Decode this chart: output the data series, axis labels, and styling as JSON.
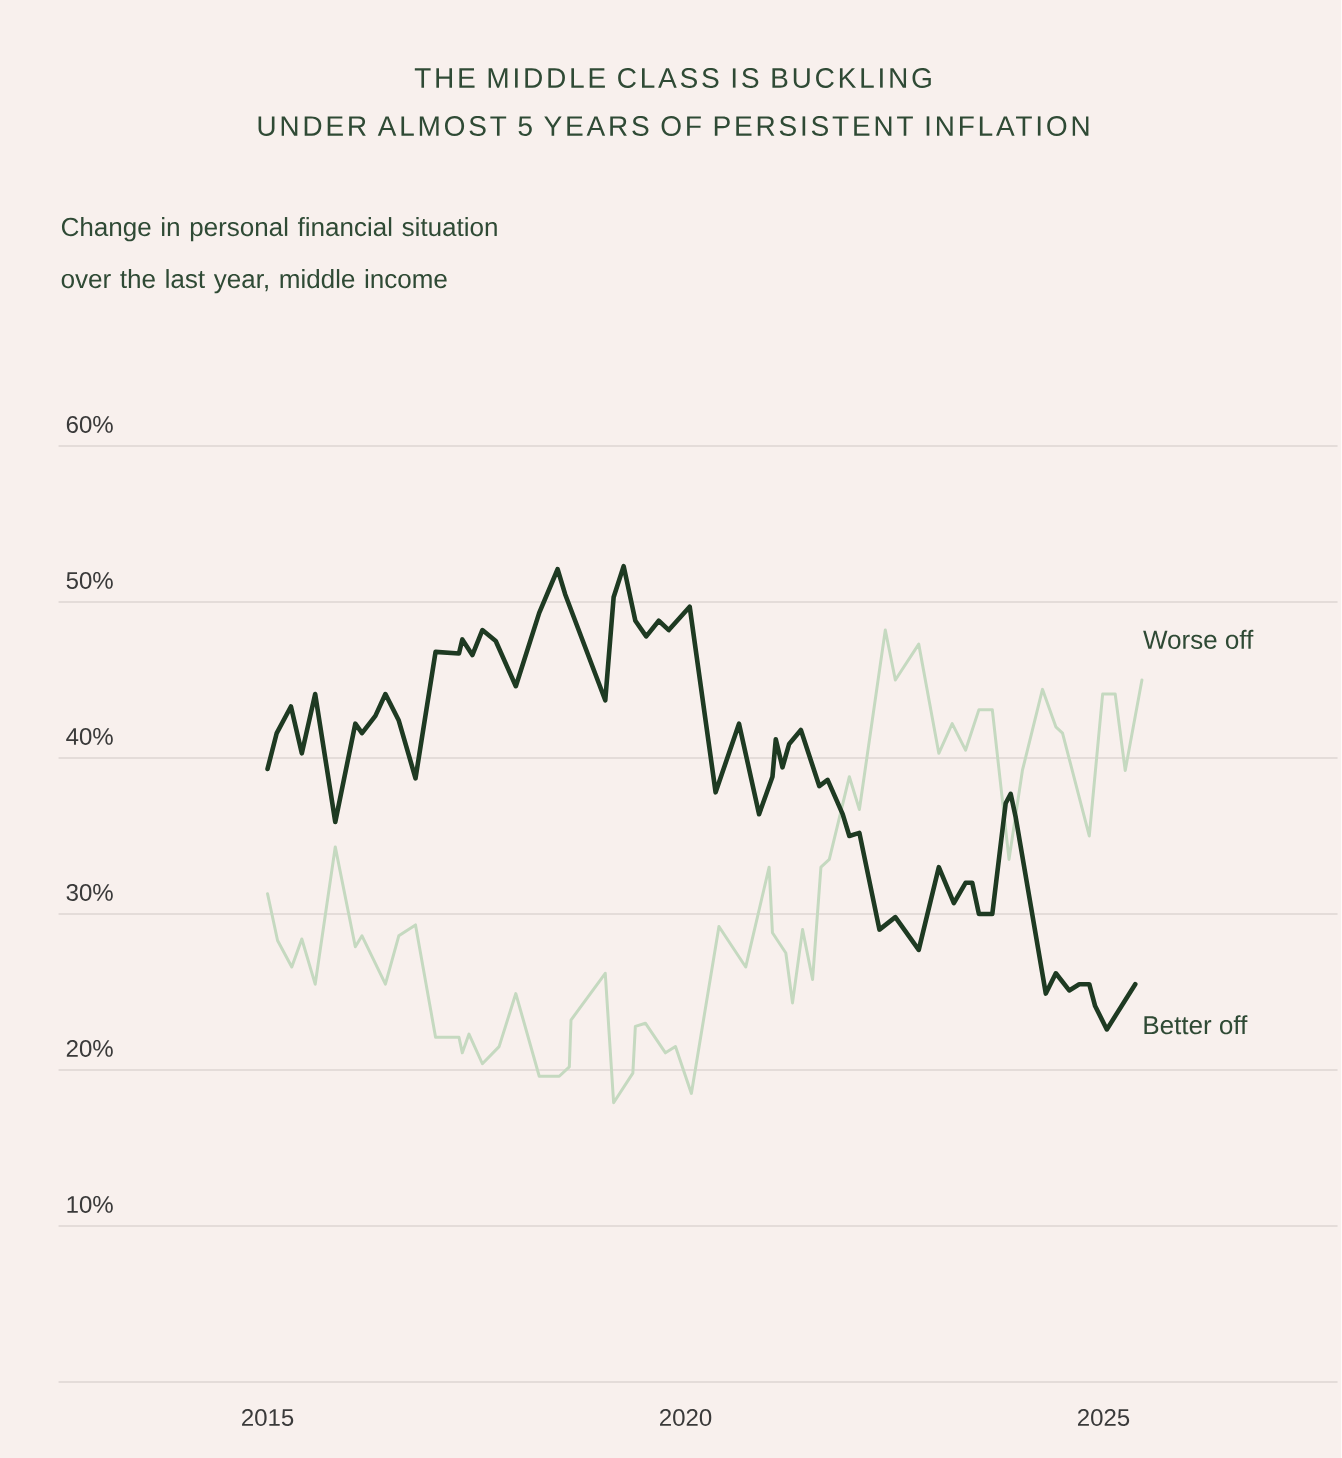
{
  "chart_data": {
    "type": "line",
    "title": "THE MIDDLE CLASS IS BUCKLING",
    "subtitle": "UNDER ALMOST 5 YEARS OF PERSISTENT INFLATION",
    "ylabel": "Change in personal financial situation over the last year, middle income",
    "xlim": [
      2012.5,
      2027.8
    ],
    "xticks": [
      2015,
      2020,
      2025
    ],
    "ylim": [
      0,
      60
    ],
    "yticks": [
      {
        "value": 0,
        "label": null
      },
      {
        "value": 10,
        "label": "10%"
      },
      {
        "value": 20,
        "label": "20%"
      },
      {
        "value": 30,
        "label": "30%"
      },
      {
        "value": 40,
        "label": "40%"
      },
      {
        "value": 50,
        "label": "50%"
      },
      {
        "value": 60,
        "label": "60%"
      }
    ],
    "grid": "y",
    "marker": "none",
    "line_style": "solid",
    "series": [
      {
        "name": "Worse off",
        "color": "#c5d9c0",
        "x": [
          2015.0,
          2015.12,
          2015.29,
          2015.41,
          2015.57,
          2015.81,
          2016.05,
          2016.13,
          2016.41,
          2016.57,
          2016.77,
          2017.01,
          2017.29,
          2017.33,
          2017.41,
          2017.57,
          2017.77,
          2017.97,
          2018.25,
          2018.49,
          2018.61,
          2018.63,
          2019.04,
          2019.14,
          2019.37,
          2019.4,
          2019.52,
          2019.76,
          2019.88,
          2020.07,
          2020.4,
          2020.72,
          2021.0,
          2021.04,
          2021.2,
          2021.28,
          2021.4,
          2021.52,
          2021.62,
          2021.72,
          2021.96,
          2022.08,
          2022.39,
          2022.51,
          2022.79,
          2023.03,
          2023.19,
          2023.35,
          2023.51,
          2023.67,
          2023.87,
          2024.03,
          2024.27,
          2024.43,
          2024.51,
          2024.83,
          2024.99,
          2025.14,
          2025.26,
          2025.46
        ],
        "values": [
          31.3,
          28.3,
          26.6,
          28.4,
          25.5,
          34.3,
          27.9,
          28.6,
          25.5,
          28.6,
          29.3,
          22.1,
          22.1,
          21.1,
          22.3,
          20.4,
          21.5,
          24.9,
          19.6,
          19.6,
          20.2,
          23.2,
          26.2,
          17.9,
          19.8,
          22.8,
          23.0,
          21.1,
          21.5,
          18.5,
          29.2,
          26.6,
          33.0,
          28.8,
          27.5,
          24.3,
          29.0,
          25.8,
          33.0,
          33.5,
          38.8,
          36.7,
          48.2,
          45.0,
          47.3,
          40.3,
          42.2,
          40.5,
          43.1,
          43.1,
          33.5,
          39.2,
          44.4,
          42.0,
          41.6,
          35.0,
          44.1,
          44.1,
          39.2,
          45.0
        ]
      },
      {
        "name": "Better off",
        "color": "#1e3a22",
        "x": [
          2015.0,
          2015.11,
          2015.28,
          2015.41,
          2015.57,
          2015.81,
          2016.05,
          2016.13,
          2016.29,
          2016.41,
          2016.57,
          2016.77,
          2017.01,
          2017.29,
          2017.33,
          2017.45,
          2017.57,
          2017.73,
          2017.97,
          2018.25,
          2018.47,
          2018.56,
          2019.04,
          2019.14,
          2019.26,
          2019.4,
          2019.53,
          2019.68,
          2019.8,
          2020.05,
          2020.36,
          2020.64,
          2020.88,
          2021.04,
          2021.08,
          2021.16,
          2021.24,
          2021.38,
          2021.6,
          2021.7,
          2021.88,
          2021.96,
          2022.08,
          2022.32,
          2022.51,
          2022.79,
          2023.03,
          2023.21,
          2023.35,
          2023.43,
          2023.51,
          2023.67,
          2023.83,
          2023.89,
          2023.95,
          2024.31,
          2024.43,
          2024.59,
          2024.71,
          2024.83,
          2024.9,
          2025.04,
          2025.38
        ],
        "values": [
          39.3,
          41.6,
          43.3,
          40.3,
          44.1,
          35.9,
          42.2,
          41.6,
          42.7,
          44.1,
          42.4,
          38.7,
          46.8,
          46.7,
          47.6,
          46.6,
          48.2,
          47.5,
          44.6,
          49.3,
          52.1,
          50.5,
          43.7,
          50.3,
          52.3,
          48.8,
          47.8,
          48.8,
          48.2,
          49.7,
          37.8,
          42.2,
          36.4,
          38.8,
          41.2,
          39.4,
          40.9,
          41.8,
          38.2,
          38.6,
          36.4,
          35.0,
          35.2,
          29.0,
          29.8,
          27.7,
          33.0,
          30.7,
          32.0,
          32.0,
          30.0,
          30.0,
          37.1,
          37.7,
          36.2,
          24.9,
          26.2,
          25.1,
          25.5,
          25.5,
          24.1,
          22.6,
          25.5
        ]
      }
    ]
  }
}
